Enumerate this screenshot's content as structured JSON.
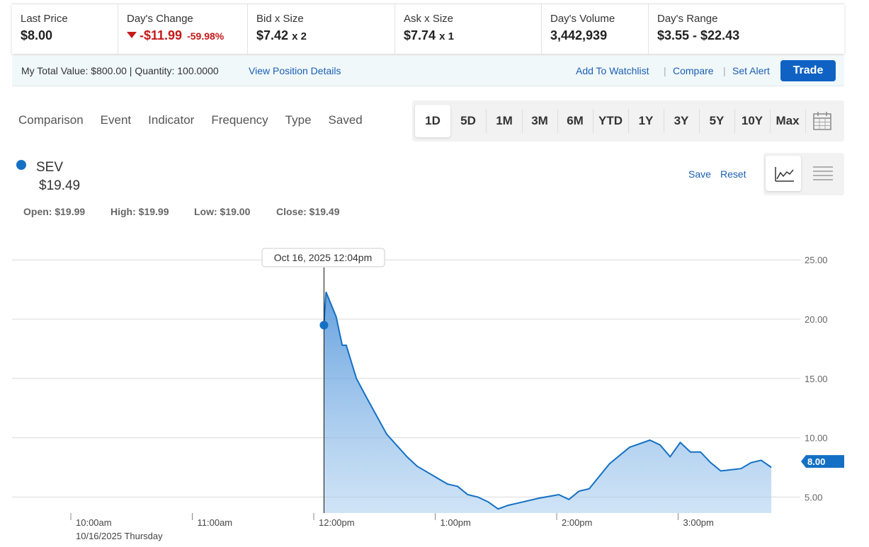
{
  "quote": {
    "last_price_label": "Last Price",
    "last_price": "$8.00",
    "change_label": "Day's Change",
    "change_value": "-$11.99",
    "change_pct": "-59.98%",
    "bid_label": "Bid x Size",
    "bid_price": "$7.42",
    "bid_size": "x 2",
    "ask_label": "Ask x Size",
    "ask_price": "$7.74",
    "ask_size": "x 1",
    "volume_label": "Day's Volume",
    "volume": "3,442,939",
    "range_label": "Day's Range",
    "range": "$3.55 - $22.43"
  },
  "position": {
    "summary": "My Total Value: $800.00 | Quantity: 100.0000",
    "view_details": "View Position Details",
    "add_watchlist": "Add To Watchlist",
    "compare": "Compare",
    "set_alert": "Set Alert",
    "trade": "Trade"
  },
  "toolbar": {
    "menu": [
      "Comparison",
      "Event",
      "Indicator",
      "Frequency",
      "Type",
      "Saved"
    ],
    "ranges": [
      "1D",
      "5D",
      "1M",
      "3M",
      "6M",
      "YTD",
      "1Y",
      "3Y",
      "5Y",
      "10Y",
      "Max"
    ],
    "active_range": "1D",
    "calendar_icon": "calendar-icon"
  },
  "legend": {
    "symbol": "SEV",
    "price": "$19.49",
    "open": "Open: $19.99",
    "high": "High: $19.99",
    "low": "Low: $19.00",
    "close": "Close: $19.49",
    "save": "Save",
    "reset": "Reset"
  },
  "colors": {
    "accent": "#1470c4",
    "negative": "#c41a1a",
    "link": "#1a5fb4"
  },
  "chart_data": {
    "type": "area",
    "x": [
      "12:04pm",
      "12:05pm",
      "12:10pm",
      "12:13pm",
      "12:15pm",
      "12:20pm",
      "12:25pm",
      "12:35pm",
      "12:45pm",
      "12:50pm",
      "12:55pm",
      "13:00pm",
      "13:05pm",
      "13:10pm",
      "13:15pm",
      "13:20pm",
      "13:25pm",
      "13:30pm",
      "13:35pm",
      "13:40pm",
      "13:50pm",
      "14:00pm",
      "14:05pm",
      "14:10pm",
      "14:15pm",
      "14:25pm",
      "14:35pm",
      "14:45pm",
      "14:50pm",
      "14:55pm",
      "15:00pm",
      "15:05pm",
      "15:10pm",
      "15:15pm",
      "15:20pm",
      "15:25pm",
      "15:30pm",
      "15:35pm",
      "15:40pm",
      "15:45pm"
    ],
    "values": [
      19.49,
      22.3,
      20.2,
      17.8,
      17.8,
      15.0,
      13.4,
      10.3,
      8.4,
      7.6,
      7.1,
      6.6,
      6.1,
      5.9,
      5.2,
      5.0,
      4.6,
      4.0,
      4.3,
      4.5,
      4.9,
      5.2,
      4.8,
      5.5,
      5.7,
      7.8,
      9.2,
      9.8,
      9.4,
      8.4,
      9.6,
      8.8,
      8.8,
      7.9,
      7.2,
      7.3,
      7.4,
      7.9,
      8.1,
      7.5
    ],
    "title": "",
    "xlabel": "",
    "ylabel": "",
    "ylim": [
      3.55,
      25
    ],
    "y_ticks": [
      "25.00",
      "20.00",
      "15.00",
      "10.00",
      "5.00"
    ],
    "x_ticks": [
      "10:00am",
      "11:00am",
      "12:00pm",
      "1:00pm",
      "2:00pm",
      "3:00pm"
    ],
    "date_label": "10/16/2025 Thursday",
    "crosshair_label": "Oct 16, 2025 12:04pm",
    "last_value_label": "8.00",
    "grid": true
  }
}
